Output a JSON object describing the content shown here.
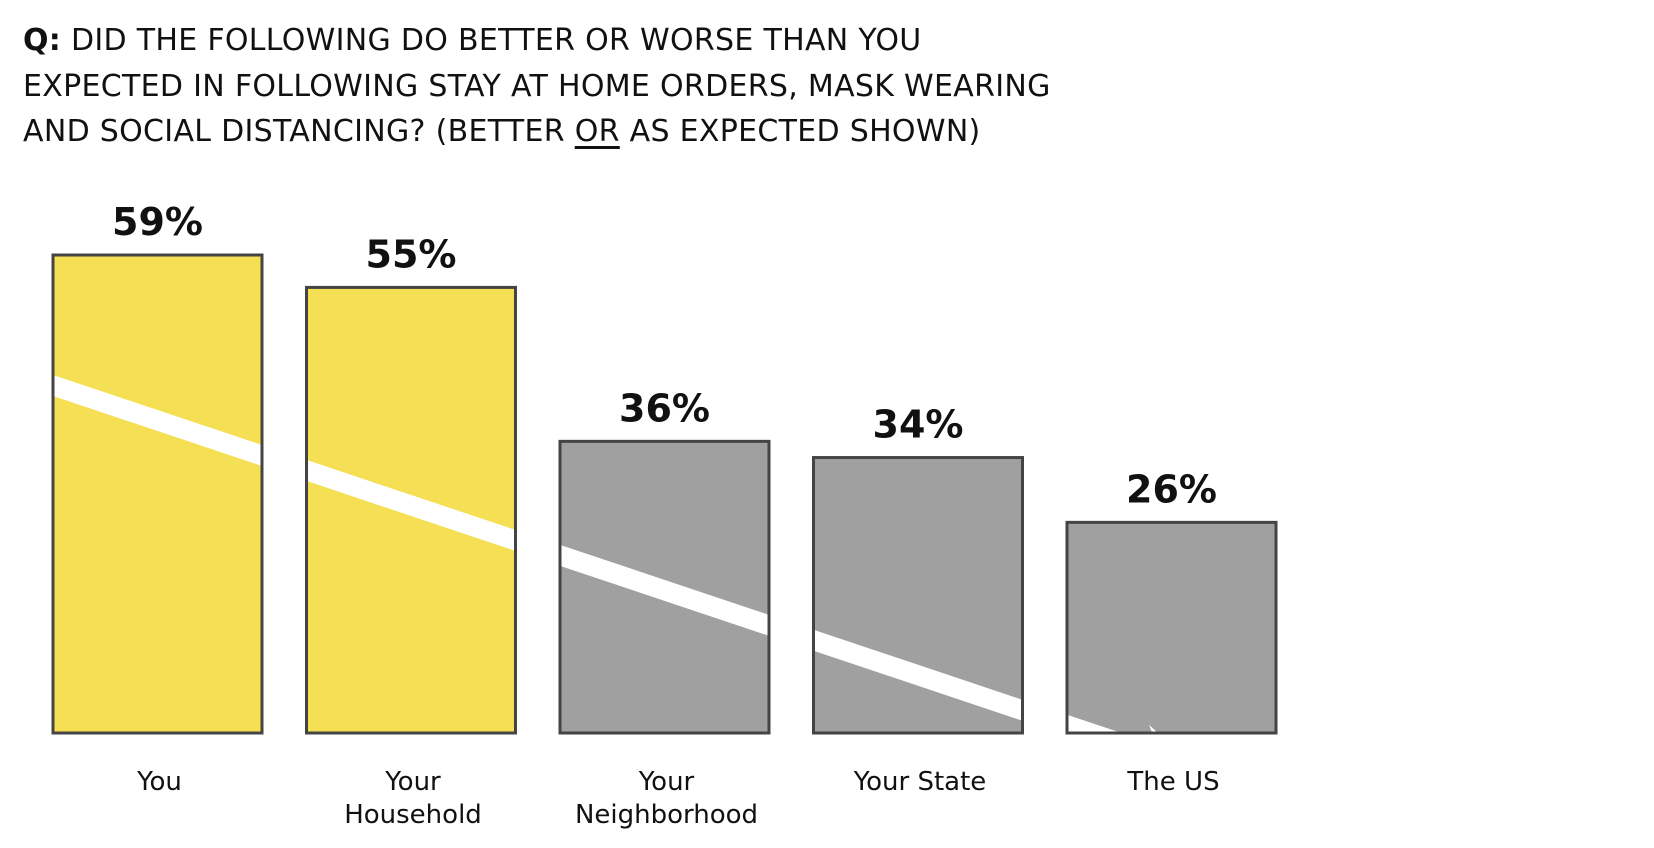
{
  "question": {
    "prefix": "Q:",
    "line1": "DID THE FOLLOWING DO BETTER OR WORSE THAN YOU",
    "line2": "EXPECTED IN FOLLOWING STAY AT HOME ORDERS, MASK WEARING",
    "line3_before": "AND SOCIAL DISTANCING? (BETTER ",
    "line3_underlined": "OR",
    "line3_after": " AS EXPECTED SHOWN)"
  },
  "chart_data": {
    "type": "bar",
    "title": "Q: DID THE FOLLOWING DO BETTER OR WORSE THAN YOU EXPECTED IN FOLLOWING STAY AT HOME ORDERS, MASK WEARING AND SOCIAL DISTANCING? (BETTER OR AS EXPECTED SHOWN)",
    "categories": [
      [
        "You"
      ],
      [
        "Your",
        "Household"
      ],
      [
        "Your",
        "Neighborhood"
      ],
      [
        "Your State"
      ],
      [
        "The US"
      ]
    ],
    "values": [
      59,
      55,
      36,
      34,
      26
    ],
    "value_labels": [
      "59%",
      "55%",
      "36%",
      "34%",
      "26%"
    ],
    "bar_colors": [
      "#f5df55",
      "#f5df55",
      "#a0a0a0",
      "#a0a0a0",
      "#a0a0a0"
    ],
    "border_color": "#444444",
    "stripe_color": "#ffffff",
    "annotation": "Descending white arrow across bars indicating downward trend",
    "xlabel": "",
    "ylabel": "",
    "ylim": [
      0,
      59
    ],
    "grid": false,
    "legend": "none"
  }
}
